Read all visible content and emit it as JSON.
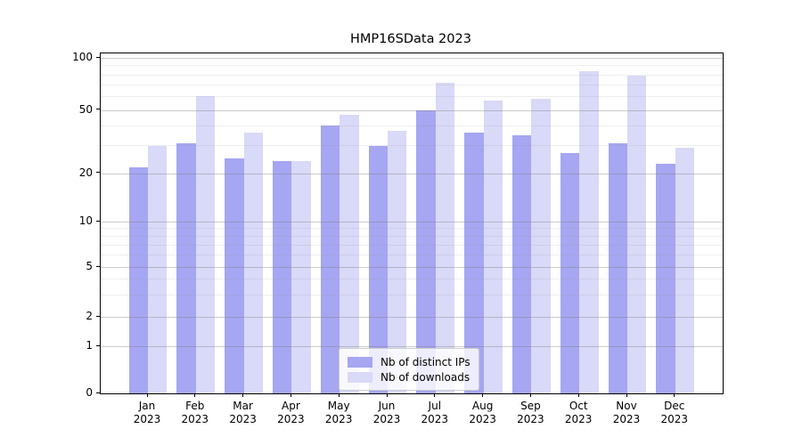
{
  "chart_data": {
    "type": "bar",
    "title": "HMP16SData 2023",
    "xlabel": "",
    "ylabel": "",
    "categories": [
      "Jan",
      "Feb",
      "Mar",
      "Apr",
      "May",
      "Jun",
      "Jul",
      "Aug",
      "Sep",
      "Oct",
      "Nov",
      "Dec"
    ],
    "category_year": "2023",
    "series": [
      {
        "name": "Nb of distinct IPs",
        "color": "#a6a6f2",
        "values": [
          22,
          31,
          25,
          24,
          40,
          30,
          50,
          36,
          35,
          27,
          31,
          23
        ]
      },
      {
        "name": "Nb of downloads",
        "color": "#d9d9f8",
        "values": [
          30,
          60,
          36,
          24,
          47,
          37,
          72,
          57,
          58,
          84,
          79,
          29
        ]
      }
    ],
    "yscale": "symlog",
    "y_ticks": [
      0,
      1,
      2,
      5,
      10,
      20,
      50,
      100
    ],
    "y_minor_gridlines": [
      3,
      4,
      6,
      7,
      8,
      9,
      30,
      40,
      60,
      70,
      80,
      90
    ],
    "ylim": [
      0,
      110
    ],
    "grid": true,
    "legend_position": "lower-center",
    "spine_color": "#000000"
  }
}
